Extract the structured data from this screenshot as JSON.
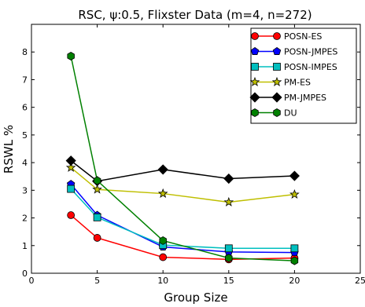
{
  "chart_data": {
    "type": "line",
    "title": "RSC,  ψ:0.5, Flixster Data (m=4, n=272)",
    "xlabel": "Group Size",
    "ylabel": "RSWL %",
    "xlim": [
      0,
      25
    ],
    "ylim": [
      0,
      9
    ],
    "xticks": [
      0,
      5,
      10,
      15,
      20,
      25
    ],
    "yticks": [
      0,
      1,
      2,
      3,
      4,
      5,
      6,
      7,
      8
    ],
    "grid": false,
    "legend_position": "top-right",
    "x": [
      3,
      5,
      10,
      15,
      20
    ],
    "series": [
      {
        "name": "POSN-ES",
        "color": "#ff0000",
        "marker": "circle",
        "values": [
          2.1,
          1.28,
          0.58,
          0.5,
          0.55
        ]
      },
      {
        "name": "POSN-JMPES",
        "color": "#0000ff",
        "marker": "pentagon",
        "values": [
          3.22,
          2.1,
          0.95,
          0.77,
          0.75
        ]
      },
      {
        "name": "POSN-IMPES",
        "color": "#00bfbf",
        "marker": "square",
        "values": [
          3.05,
          2.02,
          1.02,
          0.9,
          0.9
        ]
      },
      {
        "name": "PM-ES",
        "color": "#bfbf00",
        "marker": "star",
        "values": [
          3.82,
          3.03,
          2.88,
          2.57,
          2.85
        ]
      },
      {
        "name": "PM-JMPES",
        "color": "#000000",
        "marker": "diamond",
        "values": [
          4.07,
          3.33,
          3.75,
          3.42,
          3.52
        ]
      },
      {
        "name": "DU",
        "color": "#008000",
        "marker": "hexagon",
        "values": [
          7.85,
          3.35,
          1.18,
          0.55,
          0.45
        ]
      }
    ]
  }
}
